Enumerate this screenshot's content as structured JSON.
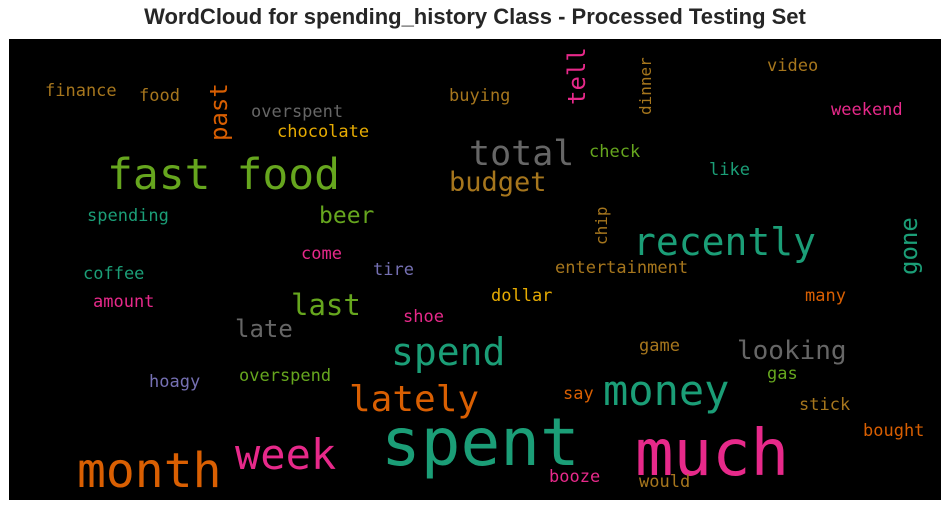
{
  "title": "WordCloud for spending_history Class - Processed Testing Set",
  "chart_data": {
    "type": "wordcloud",
    "title": "WordCloud for spending_history Class - Processed Testing Set",
    "background": "#000000",
    "words": [
      {
        "text": "spent",
        "color": "#1b9e77",
        "weight": 100
      },
      {
        "text": "much",
        "color": "#e7298a",
        "weight": 95
      },
      {
        "text": "month",
        "color": "#d95f02",
        "weight": 72
      },
      {
        "text": "money",
        "color": "#1b9e77",
        "weight": 65
      },
      {
        "text": "week",
        "color": "#e7298a",
        "weight": 60
      },
      {
        "text": "fast food",
        "color": "#66a61e",
        "weight": 62
      },
      {
        "text": "spend",
        "color": "#1b9e77",
        "weight": 55
      },
      {
        "text": "lately",
        "color": "#d95f02",
        "weight": 50
      },
      {
        "text": "recently",
        "color": "#1b9e77",
        "weight": 52
      },
      {
        "text": "total",
        "color": "#666666",
        "weight": 48
      },
      {
        "text": "budget",
        "color": "#a6761d",
        "weight": 40
      },
      {
        "text": "last",
        "color": "#66a61e",
        "weight": 40
      },
      {
        "text": "looking",
        "color": "#666666",
        "weight": 36
      },
      {
        "text": "late",
        "color": "#666666",
        "weight": 34
      },
      {
        "text": "past",
        "color": "#d95f02",
        "weight": 33
      },
      {
        "text": "tell",
        "color": "#e7298a",
        "weight": 33
      },
      {
        "text": "gone",
        "color": "#1b9e77",
        "weight": 33
      },
      {
        "text": "beer",
        "color": "#66a61e",
        "weight": 30
      },
      {
        "text": "finance",
        "color": "#a6761d",
        "weight": 22
      },
      {
        "text": "food",
        "color": "#a6761d",
        "weight": 22
      },
      {
        "text": "overspent",
        "color": "#666666",
        "weight": 22
      },
      {
        "text": "chocolate",
        "color": "#e6ab02",
        "weight": 22
      },
      {
        "text": "buying",
        "color": "#a6761d",
        "weight": 22
      },
      {
        "text": "dinner",
        "color": "#a6761d",
        "weight": 22
      },
      {
        "text": "video",
        "color": "#a6761d",
        "weight": 22
      },
      {
        "text": "weekend",
        "color": "#e7298a",
        "weight": 22
      },
      {
        "text": "check",
        "color": "#66a61e",
        "weight": 22
      },
      {
        "text": "like",
        "color": "#1b9e77",
        "weight": 22
      },
      {
        "text": "spending",
        "color": "#1b9e77",
        "weight": 22
      },
      {
        "text": "chip",
        "color": "#a6761d",
        "weight": 22
      },
      {
        "text": "come",
        "color": "#e7298a",
        "weight": 22
      },
      {
        "text": "tire",
        "color": "#7570b3",
        "weight": 22
      },
      {
        "text": "entertainment",
        "color": "#a6761d",
        "weight": 22
      },
      {
        "text": "coffee",
        "color": "#1b9e77",
        "weight": 22
      },
      {
        "text": "amount",
        "color": "#e7298a",
        "weight": 22
      },
      {
        "text": "dollar",
        "color": "#e6ab02",
        "weight": 22
      },
      {
        "text": "many",
        "color": "#d95f02",
        "weight": 22
      },
      {
        "text": "shoe",
        "color": "#e7298a",
        "weight": 22
      },
      {
        "text": "game",
        "color": "#a6761d",
        "weight": 22
      },
      {
        "text": "hoagy",
        "color": "#7570b3",
        "weight": 22
      },
      {
        "text": "overspend",
        "color": "#66a61e",
        "weight": 22
      },
      {
        "text": "gas",
        "color": "#66a61e",
        "weight": 22
      },
      {
        "text": "say",
        "color": "#d95f02",
        "weight": 22
      },
      {
        "text": "stick",
        "color": "#a6761d",
        "weight": 22
      },
      {
        "text": "bought",
        "color": "#d95f02",
        "weight": 22
      },
      {
        "text": "booze",
        "color": "#e7298a",
        "weight": 22
      },
      {
        "text": "would",
        "color": "#a6761d",
        "weight": 22
      }
    ]
  }
}
